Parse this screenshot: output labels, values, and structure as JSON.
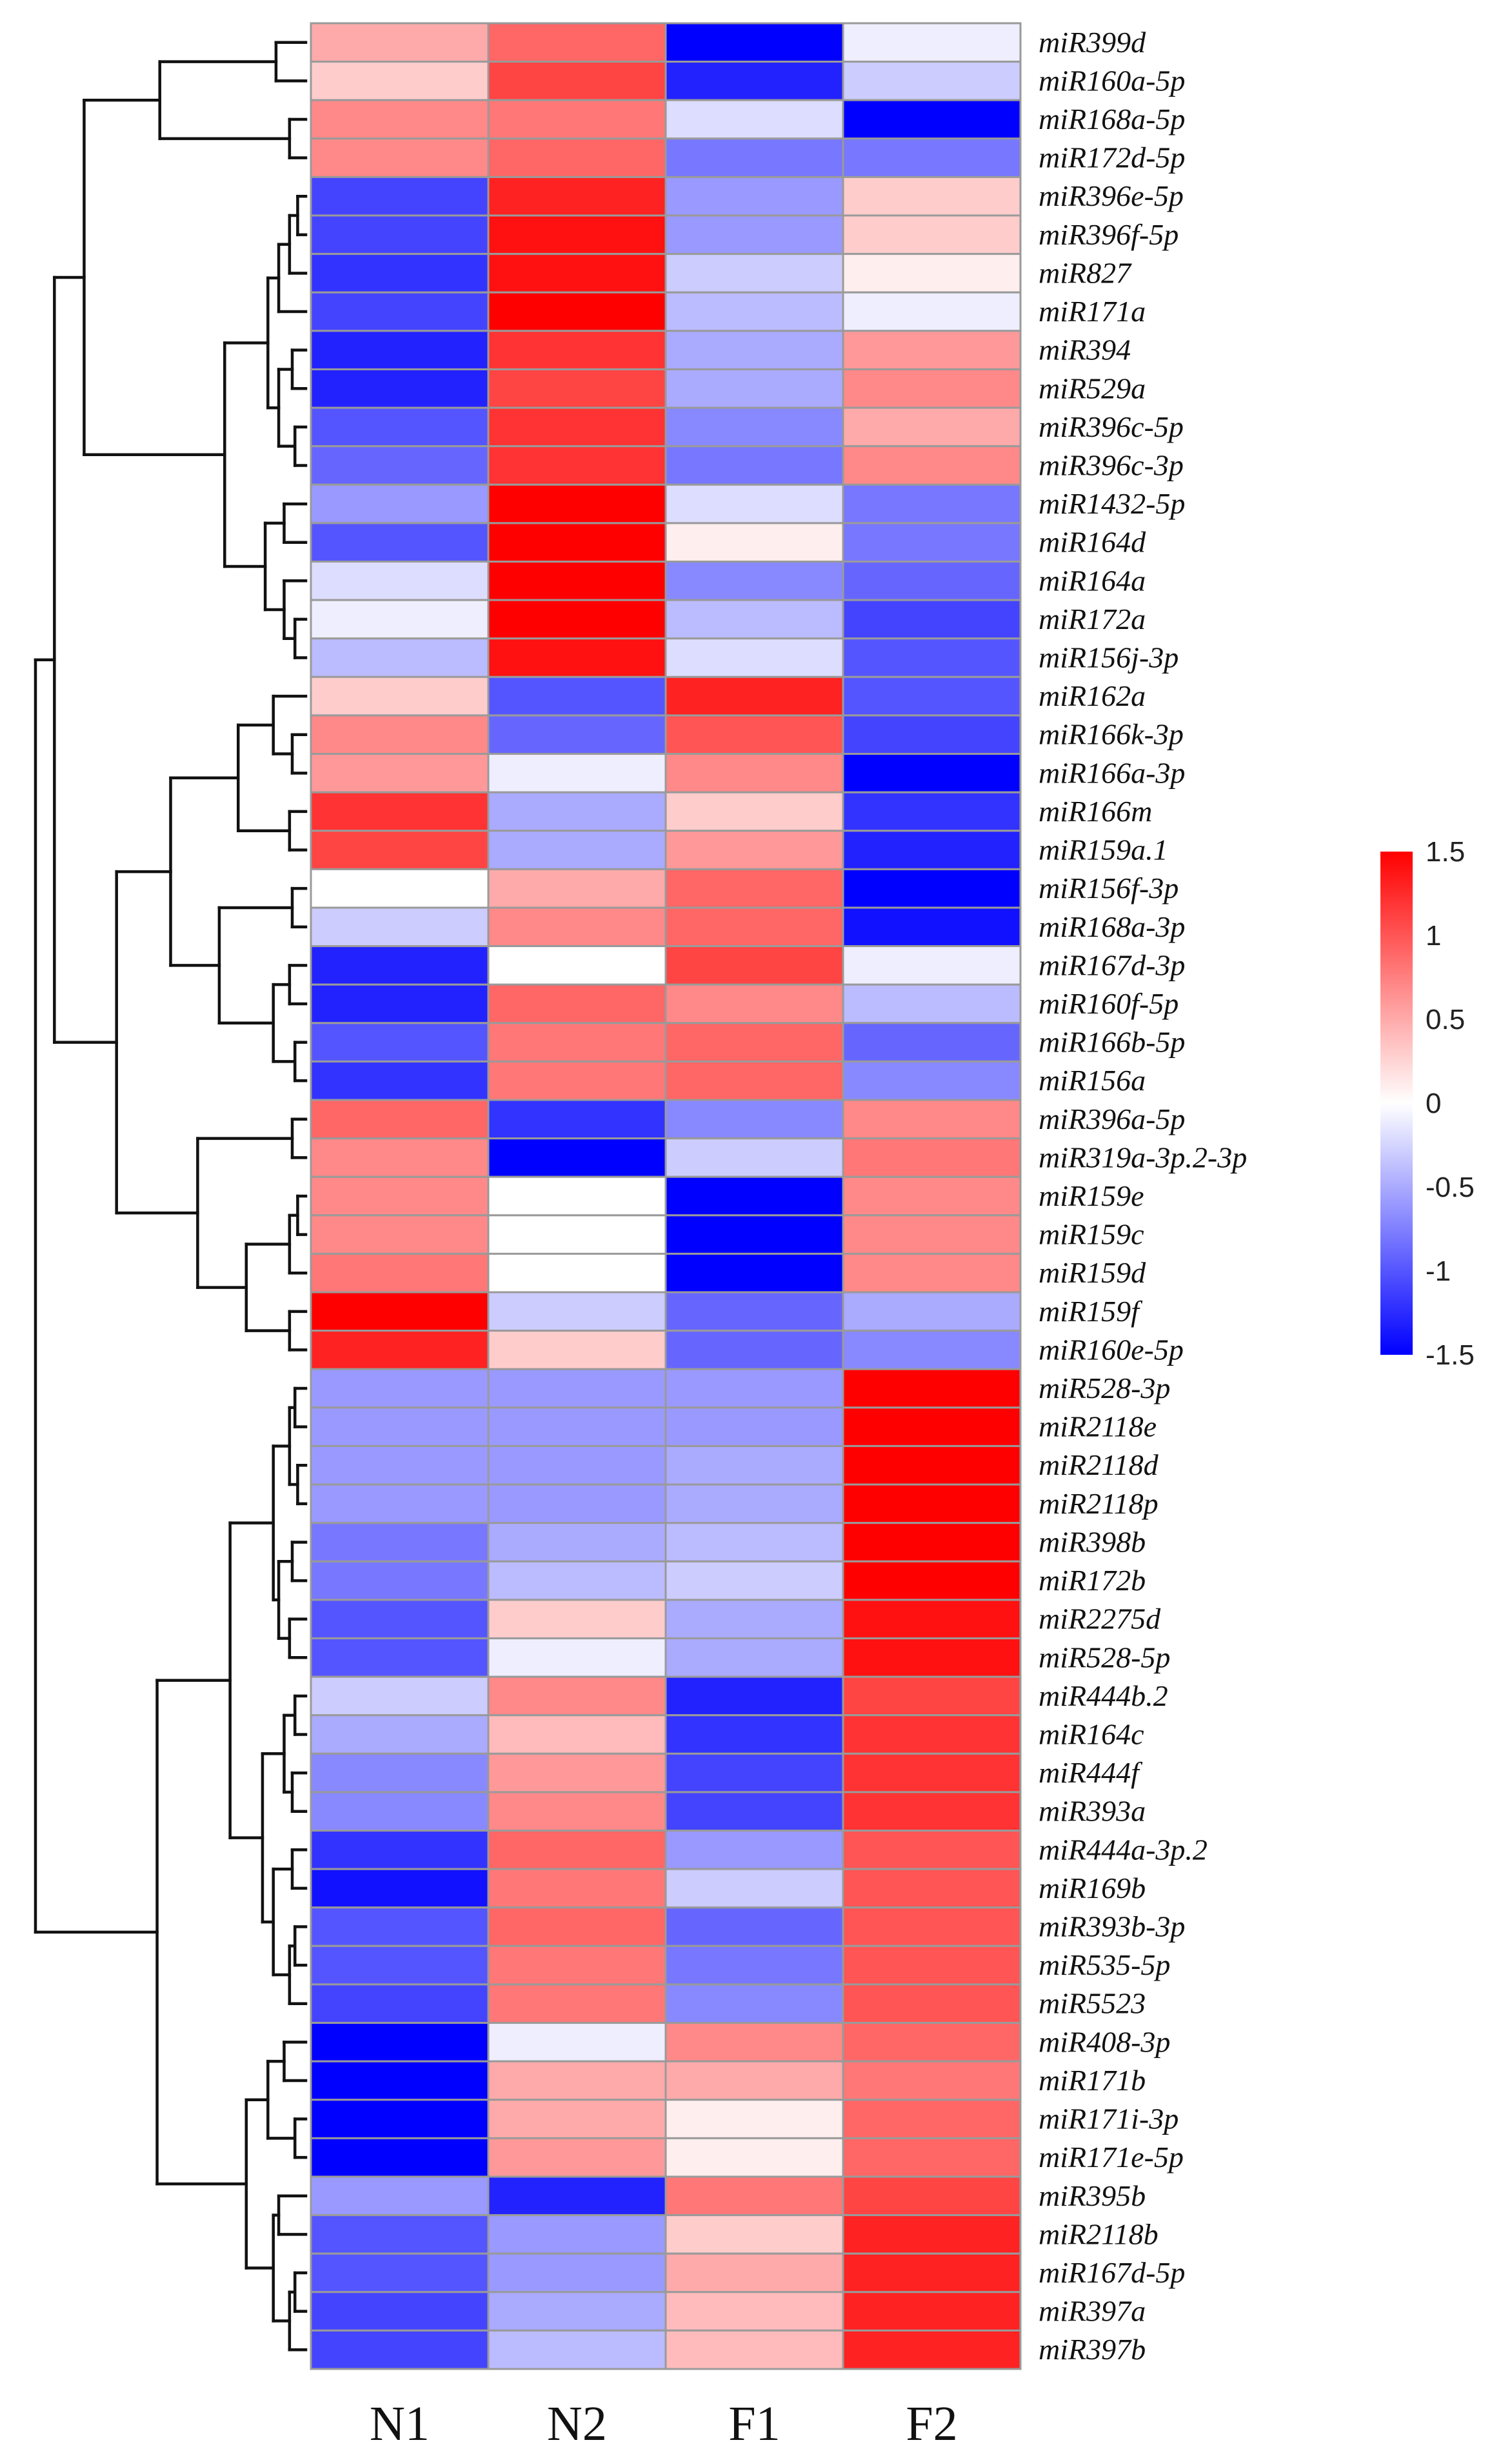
{
  "chart_data": {
    "type": "heatmap",
    "title": "",
    "columns": [
      "N1",
      "N2",
      "F1",
      "F2"
    ],
    "rows": [
      "miR399d",
      "miR160a-5p",
      "miR168a-5p",
      "miR172d-5p",
      "miR396e-5p",
      "miR396f-5p",
      "miR827",
      "miR171a",
      "miR394",
      "miR529a",
      "miR396c-5p",
      "miR396c-3p",
      "miR1432-5p",
      "miR164d",
      "miR164a",
      "miR172a",
      "miR156j-3p",
      "miR162a",
      "miR166k-3p",
      "miR166a-3p",
      "miR166m",
      "miR159a.1",
      "miR156f-3p",
      "miR168a-3p",
      "miR167d-3p",
      "miR160f-5p",
      "miR166b-5p",
      "miR156a",
      "miR396a-5p",
      "miR319a-3p.2-3p",
      "miR159e",
      "miR159c",
      "miR159d",
      "miR159f",
      "miR160e-5p",
      "miR528-3p",
      "miR2118e",
      "miR2118d",
      "miR2118p",
      "miR398b",
      "miR172b",
      "miR2275d",
      "miR528-5p",
      "miR444b.2",
      "miR164c",
      "miR444f",
      "miR393a",
      "miR444a-3p.2",
      "miR169b",
      "miR393b-3p",
      "miR535-5p",
      "miR5523",
      "miR408-3p",
      "miR171b",
      "miR171i-3p",
      "miR171e-5p",
      "miR395b",
      "miR2118b",
      "miR167d-5p",
      "miR397a",
      "miR397b"
    ],
    "values": [
      [
        0.5,
        0.9,
        -1.5,
        -0.1
      ],
      [
        0.3,
        1.1,
        -1.3,
        -0.3
      ],
      [
        0.7,
        0.8,
        -0.2,
        -1.5
      ],
      [
        0.7,
        0.9,
        -0.8,
        -0.8
      ],
      [
        -1.1,
        1.3,
        -0.6,
        0.3
      ],
      [
        -1.1,
        1.4,
        -0.6,
        0.3
      ],
      [
        -1.2,
        1.4,
        -0.3,
        0.1
      ],
      [
        -1.1,
        1.5,
        -0.4,
        -0.1
      ],
      [
        -1.3,
        1.2,
        -0.5,
        0.6
      ],
      [
        -1.3,
        1.1,
        -0.5,
        0.7
      ],
      [
        -1.0,
        1.2,
        -0.7,
        0.5
      ],
      [
        -0.9,
        1.2,
        -0.8,
        0.7
      ],
      [
        -0.6,
        1.5,
        -0.2,
        -0.8
      ],
      [
        -1.0,
        1.5,
        0.1,
        -0.8
      ],
      [
        -0.2,
        1.5,
        -0.7,
        -0.9
      ],
      [
        -0.1,
        1.5,
        -0.4,
        -1.1
      ],
      [
        -0.4,
        1.4,
        -0.2,
        -1.0
      ],
      [
        0.3,
        -1.0,
        1.3,
        -1.0
      ],
      [
        0.7,
        -0.9,
        1.0,
        -1.1
      ],
      [
        0.6,
        -0.1,
        0.7,
        -1.5
      ],
      [
        1.2,
        -0.5,
        0.3,
        -1.2
      ],
      [
        1.1,
        -0.5,
        0.6,
        -1.3
      ],
      [
        0.0,
        0.5,
        0.9,
        -1.5
      ],
      [
        -0.3,
        0.7,
        0.9,
        -1.4
      ],
      [
        -1.3,
        0.0,
        1.1,
        -0.1
      ],
      [
        -1.3,
        0.9,
        0.7,
        -0.4
      ],
      [
        -1.0,
        0.8,
        0.9,
        -0.9
      ],
      [
        -1.2,
        0.8,
        0.9,
        -0.7
      ],
      [
        0.9,
        -1.2,
        -0.7,
        0.7
      ],
      [
        0.7,
        -1.5,
        -0.3,
        0.8
      ],
      [
        0.7,
        0.0,
        -1.5,
        0.7
      ],
      [
        0.7,
        0.0,
        -1.5,
        0.7
      ],
      [
        0.8,
        0.0,
        -1.5,
        0.7
      ],
      [
        1.5,
        -0.3,
        -0.9,
        -0.5
      ],
      [
        1.3,
        0.3,
        -0.9,
        -0.7
      ],
      [
        -0.6,
        -0.6,
        -0.6,
        1.5
      ],
      [
        -0.6,
        -0.6,
        -0.6,
        1.5
      ],
      [
        -0.6,
        -0.6,
        -0.5,
        1.5
      ],
      [
        -0.6,
        -0.6,
        -0.5,
        1.5
      ],
      [
        -0.8,
        -0.5,
        -0.4,
        1.5
      ],
      [
        -0.8,
        -0.4,
        -0.3,
        1.5
      ],
      [
        -1.0,
        0.3,
        -0.5,
        1.4
      ],
      [
        -1.0,
        -0.1,
        -0.5,
        1.4
      ],
      [
        -0.3,
        0.7,
        -1.3,
        1.1
      ],
      [
        -0.5,
        0.4,
        -1.2,
        1.2
      ],
      [
        -0.7,
        0.6,
        -1.1,
        1.2
      ],
      [
        -0.7,
        0.7,
        -1.1,
        1.2
      ],
      [
        -1.2,
        0.9,
        -0.6,
        1.0
      ],
      [
        -1.4,
        0.8,
        -0.3,
        1.0
      ],
      [
        -1.0,
        0.9,
        -0.9,
        1.0
      ],
      [
        -1.0,
        0.8,
        -0.8,
        1.0
      ],
      [
        -1.1,
        0.8,
        -0.7,
        1.0
      ],
      [
        -1.5,
        -0.1,
        0.7,
        0.9
      ],
      [
        -1.5,
        0.5,
        0.5,
        0.8
      ],
      [
        -1.5,
        0.5,
        0.1,
        0.9
      ],
      [
        -1.5,
        0.6,
        0.1,
        0.9
      ],
      [
        -0.6,
        -1.3,
        0.8,
        1.1
      ],
      [
        -1.0,
        -0.6,
        0.3,
        1.3
      ],
      [
        -1.0,
        -0.6,
        0.5,
        1.3
      ],
      [
        -1.1,
        -0.5,
        0.4,
        1.3
      ],
      [
        -1.1,
        -0.4,
        0.4,
        1.3
      ]
    ],
    "color_scale": {
      "min": -1.5,
      "max": 1.5,
      "low_color": "#0000ff",
      "mid_color": "#ffffff",
      "high_color": "#ff0000",
      "ticks": [
        "1.5",
        "1",
        "0.5",
        "0",
        "-0.5",
        "-1",
        "-1.5"
      ]
    },
    "legend_position": "right",
    "dendrogram": "rows"
  }
}
